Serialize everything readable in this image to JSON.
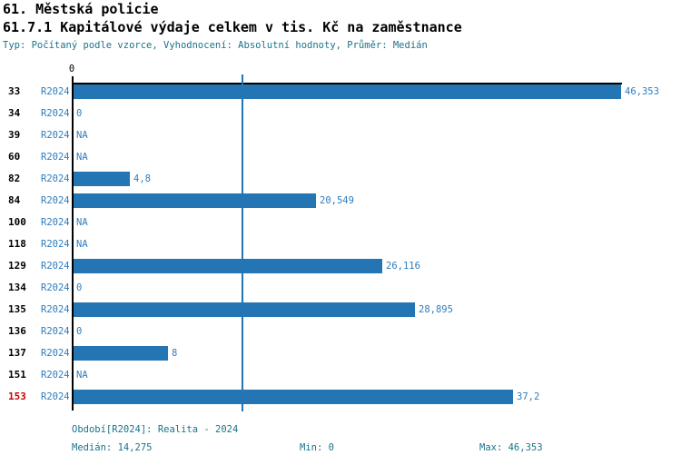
{
  "header": {
    "title": "61. Městská policie",
    "subtitle": "61.7.1 Kapitálové výdaje celkem v tis. Kč na zaměstnance",
    "meta": "Typ: Počítaný podle vzorce, Vyhodnocení: Absolutní hodnoty, Průměr: Medián"
  },
  "chart_data": {
    "type": "bar",
    "orientation": "horizontal",
    "title": "61.7.1 Kapitálové výdaje celkem v tis. Kč na zaměstnance",
    "unit": "tis. Kč",
    "period_label": "R2024",
    "axis": {
      "zero_label": "0",
      "xlim": [
        0,
        46.353
      ],
      "median": 14.275,
      "grid": "median-line-only"
    },
    "rows": [
      {
        "id": "33",
        "period": "R2024",
        "value": 46.353,
        "label": "46,353",
        "highlight": false
      },
      {
        "id": "34",
        "period": "R2024",
        "value": 0,
        "label": "0",
        "highlight": false
      },
      {
        "id": "39",
        "period": "R2024",
        "value": null,
        "label": "NA",
        "highlight": false
      },
      {
        "id": "60",
        "period": "R2024",
        "value": null,
        "label": "NA",
        "highlight": false
      },
      {
        "id": "82",
        "period": "R2024",
        "value": 4.8,
        "label": "4,8",
        "highlight": false
      },
      {
        "id": "84",
        "period": "R2024",
        "value": 20.549,
        "label": "20,549",
        "highlight": false
      },
      {
        "id": "100",
        "period": "R2024",
        "value": null,
        "label": "NA",
        "highlight": false
      },
      {
        "id": "118",
        "period": "R2024",
        "value": null,
        "label": "NA",
        "highlight": false
      },
      {
        "id": "129",
        "period": "R2024",
        "value": 26.116,
        "label": "26,116",
        "highlight": false
      },
      {
        "id": "134",
        "period": "R2024",
        "value": 0,
        "label": "0",
        "highlight": false
      },
      {
        "id": "135",
        "period": "R2024",
        "value": 28.895,
        "label": "28,895",
        "highlight": false
      },
      {
        "id": "136",
        "period": "R2024",
        "value": 0,
        "label": "0",
        "highlight": false
      },
      {
        "id": "137",
        "period": "R2024",
        "value": 8,
        "label": "8",
        "highlight": false
      },
      {
        "id": "151",
        "period": "R2024",
        "value": null,
        "label": "NA",
        "highlight": false
      },
      {
        "id": "153",
        "period": "R2024",
        "value": 37.2,
        "label": "37,2",
        "highlight": true
      }
    ]
  },
  "footer": {
    "period_line": "Období[R2024]: Realita - 2024",
    "median_label": "Medián: 14,275",
    "min_label": "Min: 0",
    "max_label": "Max: 46,353"
  },
  "colors": {
    "bar": "#2475b4",
    "value_text": "#2e7cbe",
    "meta_text": "#1a7389",
    "highlight_id": "#cc0000",
    "median_line": "#2475b4",
    "axis": "#000000"
  }
}
